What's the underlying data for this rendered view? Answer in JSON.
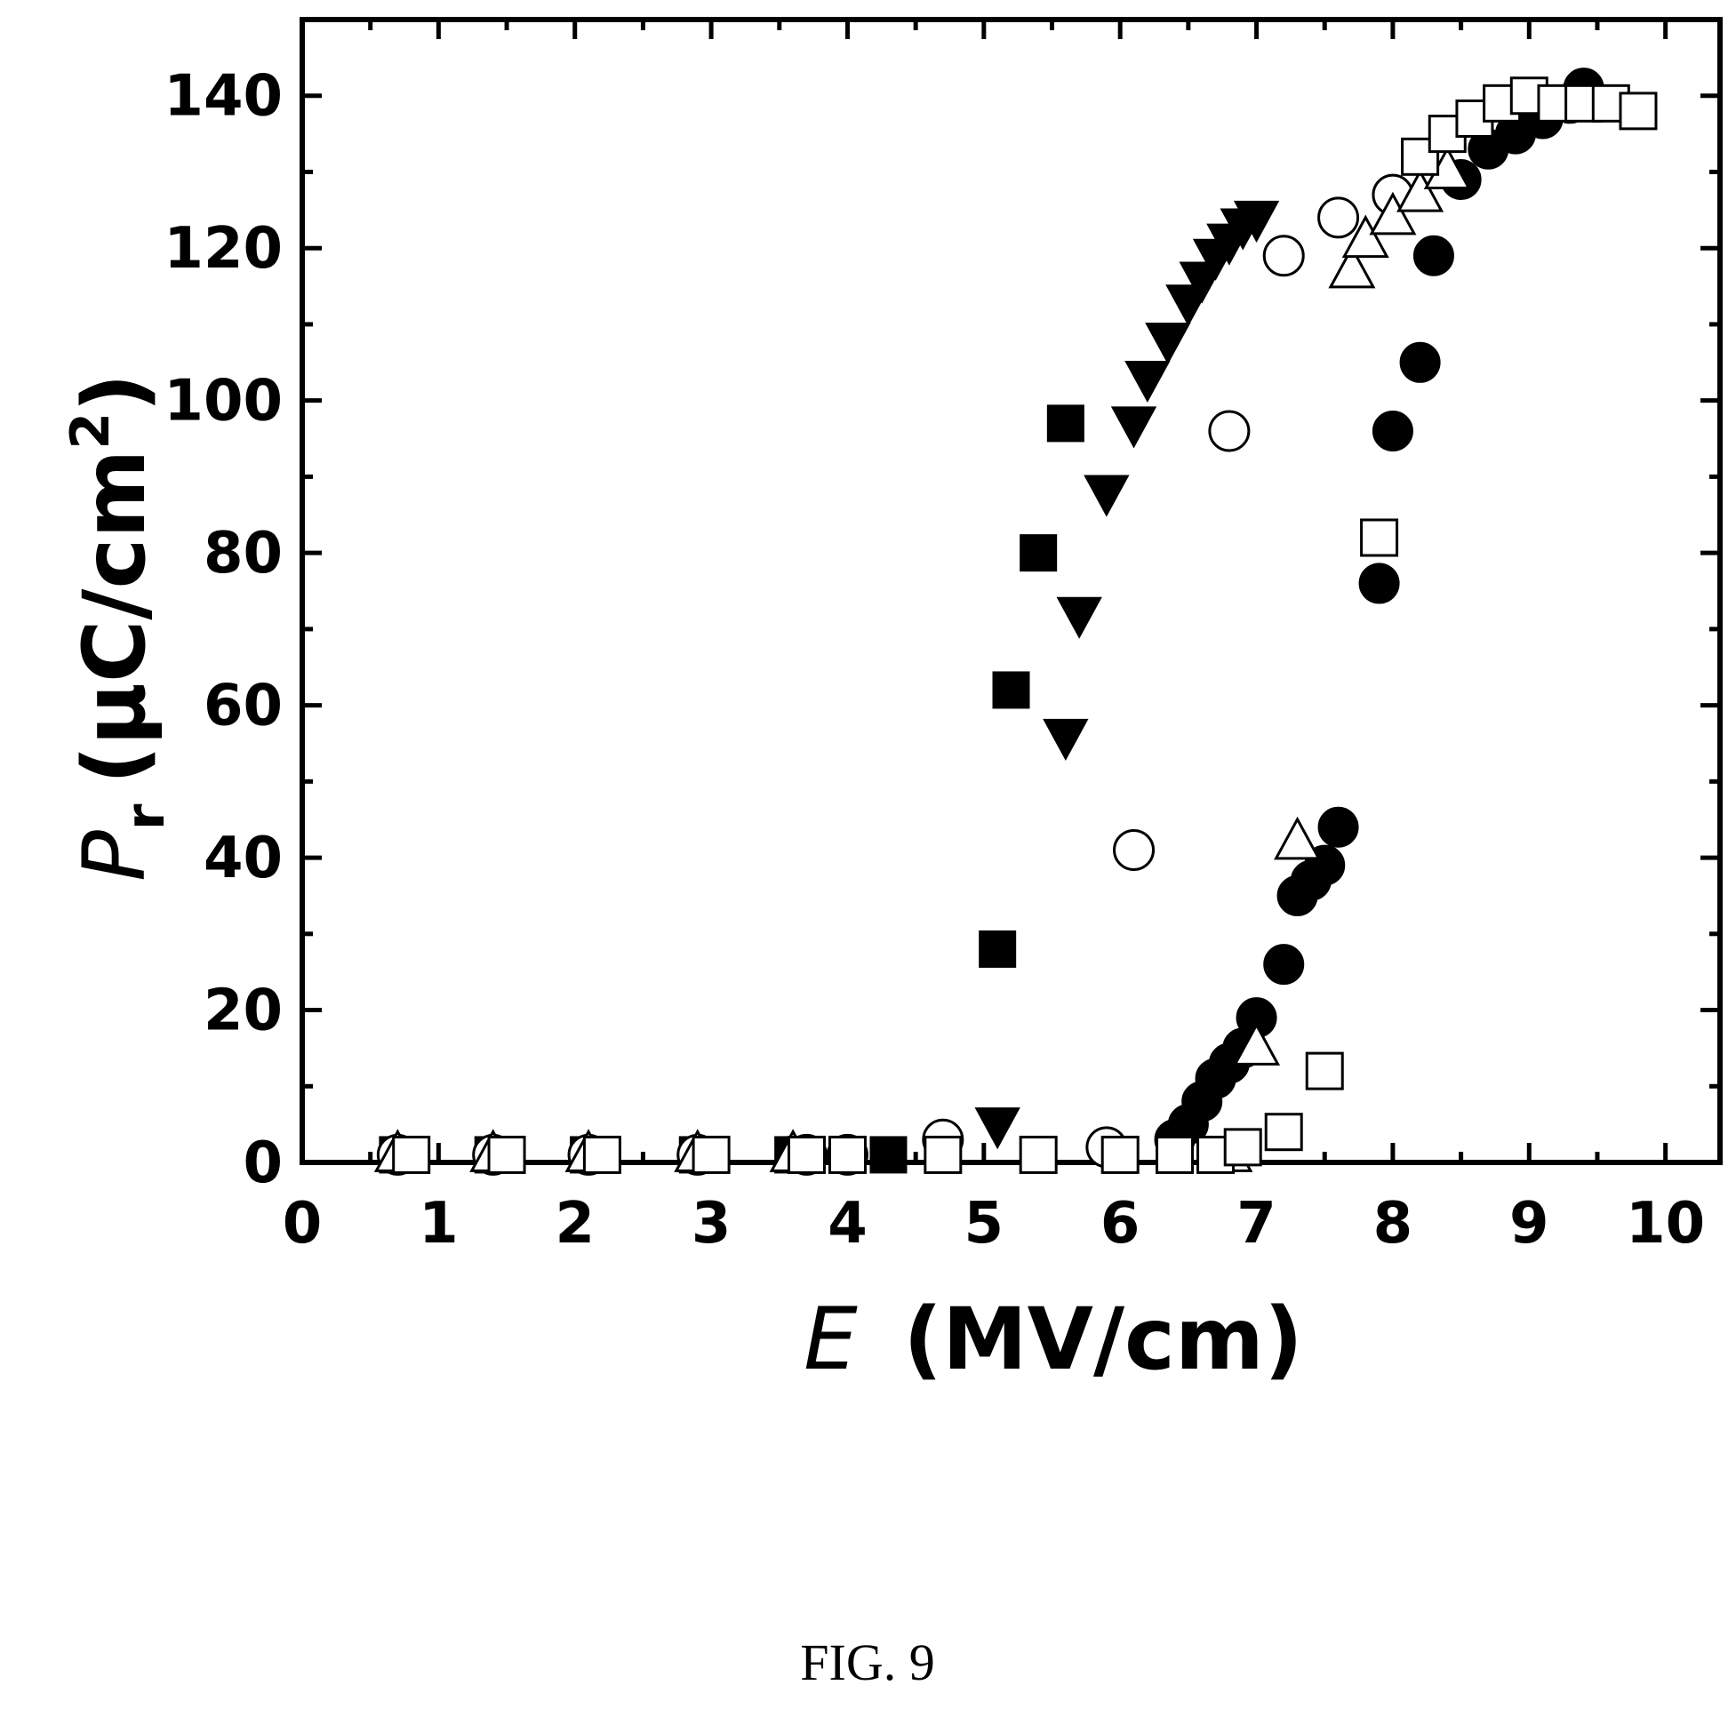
{
  "caption": "FIG. 9",
  "chart_data": {
    "type": "scatter",
    "title": "",
    "xlabel": {
      "symbol": "E",
      "unit": "(MV/cm)"
    },
    "ylabel": {
      "symbol": "P",
      "subscript": "r",
      "unit_prefix": "(μC/cm",
      "superscript": "2",
      "unit_suffix": ")"
    },
    "xlim": [
      0,
      10.4
    ],
    "ylim": [
      0,
      150
    ],
    "x_ticks": [
      0,
      1,
      2,
      3,
      4,
      5,
      6,
      7,
      8,
      9,
      10
    ],
    "y_ticks": [
      0,
      20,
      40,
      60,
      80,
      100,
      120,
      140
    ],
    "grid": false,
    "series": [
      {
        "marker": "filled-square",
        "x": [
          0.7,
          1.4,
          2.1,
          2.9,
          3.6,
          4.3,
          5.1,
          5.2,
          5.4,
          5.6
        ],
        "y": [
          1,
          1,
          1,
          1,
          1,
          1,
          28,
          62,
          80,
          97
        ]
      },
      {
        "marker": "filled-triangle-down",
        "x": [
          5.1,
          5.6,
          5.7,
          5.9,
          6.1,
          6.2,
          6.35,
          6.5,
          6.6,
          6.7,
          6.8,
          6.9,
          7.0
        ],
        "y": [
          5,
          56,
          72,
          88,
          97,
          103,
          108,
          113,
          116,
          119,
          121,
          123,
          124
        ]
      },
      {
        "marker": "open-circle",
        "x": [
          0.7,
          1.4,
          2.1,
          2.9,
          3.7,
          4.0,
          4.7,
          5.9,
          6.1,
          6.8,
          7.2,
          7.6,
          8.0
        ],
        "y": [
          1,
          1,
          1,
          1,
          1,
          1,
          3,
          2,
          41,
          96,
          119,
          124,
          127
        ]
      },
      {
        "marker": "filled-circle",
        "x": [
          6.4,
          6.5,
          6.6,
          6.7,
          6.8,
          6.9,
          7.0,
          7.2,
          7.3,
          7.4,
          7.5,
          7.6,
          7.9,
          8.0,
          8.2,
          8.3,
          8.5,
          8.7,
          8.9,
          9.1,
          9.3,
          9.4
        ],
        "y": [
          3,
          5,
          8,
          11,
          13,
          15,
          19,
          26,
          35,
          37,
          39,
          44,
          76,
          96,
          105,
          119,
          129,
          133,
          135,
          137,
          139,
          141
        ]
      },
      {
        "marker": "open-triangle-up",
        "x": [
          0.7,
          1.4,
          2.1,
          2.9,
          3.6,
          6.8,
          7.0,
          7.3,
          7.7,
          7.8,
          8.0,
          8.2,
          8.4
        ],
        "y": [
          1,
          1,
          1,
          1,
          1,
          1,
          15,
          42,
          117,
          121,
          124,
          127,
          130
        ]
      },
      {
        "marker": "open-square",
        "x": [
          0.8,
          1.5,
          2.2,
          3.0,
          3.7,
          4.0,
          4.7,
          5.4,
          6.0,
          6.4,
          6.7,
          6.9,
          7.2,
          7.5,
          7.9,
          8.2,
          8.4,
          8.6,
          8.8,
          9.0,
          9.2,
          9.4,
          9.6,
          9.8
        ],
        "y": [
          1,
          1,
          1,
          1,
          1,
          1,
          1,
          1,
          1,
          1,
          1,
          2,
          4,
          12,
          82,
          132,
          135,
          137,
          139,
          140,
          139,
          139,
          139,
          138
        ]
      }
    ]
  }
}
